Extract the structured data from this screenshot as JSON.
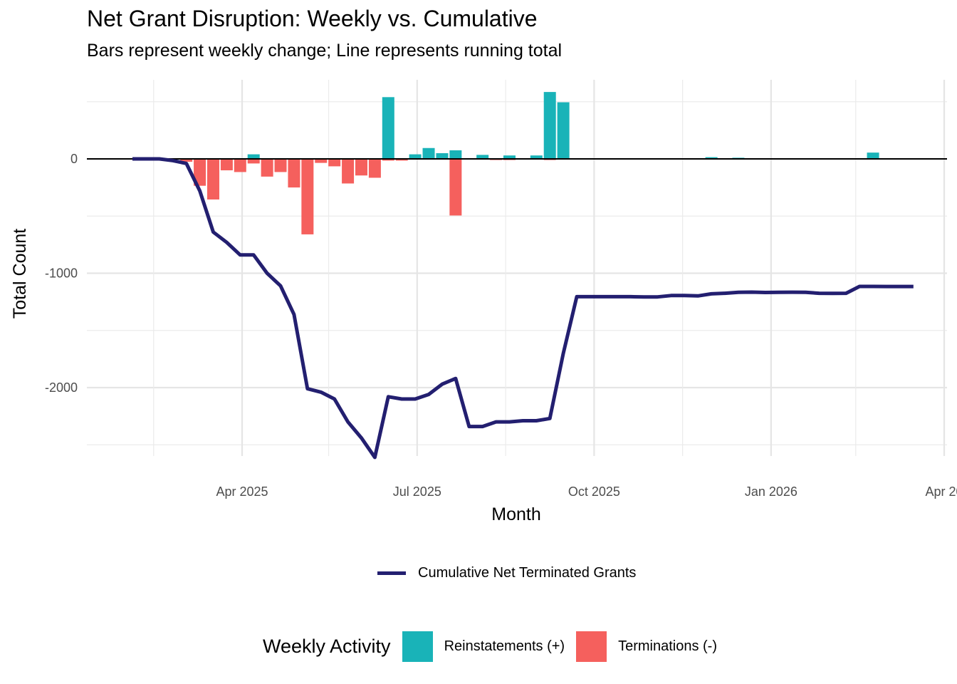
{
  "title": "Net Grant Disruption: Weekly vs. Cumulative",
  "subtitle": "Bars represent weekly change; Line represents running total",
  "chart_data": {
    "type": "bar+line",
    "title": "Net Grant Disruption: Weekly vs. Cumulative",
    "subtitle": "Bars represent weekly change; Line represents running total",
    "xlabel": "Month",
    "ylabel": "Total Count",
    "ylim": [
      -2620,
      560
    ],
    "xlim": [
      "2025-01-23",
      "2026-04-03"
    ],
    "grid": true,
    "yticks": [
      0,
      -1000,
      -2000
    ],
    "ytick_labels": [
      "0",
      "-1000",
      "-2000"
    ],
    "xticks": [
      "2025-04-01",
      "2025-07-01",
      "2025-10-01",
      "2026-01-01",
      "2026-04-01"
    ],
    "xtick_labels": [
      "Apr 2025",
      "Jul 2025",
      "Oct 2025",
      "Jan 2026",
      "Apr 20"
    ],
    "colors": {
      "reinstatements": "#19b3b8",
      "terminations": "#f5605d",
      "cumulative": "#231f70",
      "zero_line": "#000000"
    },
    "legend": {
      "line_label": "Cumulative Net Terminated Grants",
      "fill_title": "Weekly Activity",
      "fill_items": [
        {
          "label": "Reinstatements (+)",
          "color": "#19b3b8"
        },
        {
          "label": "Terminations (-)",
          "color": "#f5605d"
        }
      ],
      "placement": "bottom"
    },
    "weeks": [
      "2025-02-03",
      "2025-02-10",
      "2025-02-17",
      "2025-02-24",
      "2025-03-03",
      "2025-03-10",
      "2025-03-17",
      "2025-03-24",
      "2025-03-31",
      "2025-04-07",
      "2025-04-14",
      "2025-04-21",
      "2025-04-28",
      "2025-05-05",
      "2025-05-12",
      "2025-05-19",
      "2025-05-26",
      "2025-06-02",
      "2025-06-09",
      "2025-06-16",
      "2025-06-23",
      "2025-06-30",
      "2025-07-07",
      "2025-07-14",
      "2025-07-21",
      "2025-07-28",
      "2025-08-04",
      "2025-08-11",
      "2025-08-18",
      "2025-08-25",
      "2025-09-01",
      "2025-09-08",
      "2025-09-15",
      "2025-09-22",
      "2025-09-29",
      "2025-10-06",
      "2025-10-13",
      "2025-10-20",
      "2025-10-27",
      "2025-11-03",
      "2025-11-10",
      "2025-11-17",
      "2025-11-24",
      "2025-12-01",
      "2025-12-08",
      "2025-12-15",
      "2025-12-22",
      "2025-12-29",
      "2026-01-05",
      "2026-01-12",
      "2026-01-19",
      "2026-01-26",
      "2026-02-02",
      "2026-02-09",
      "2026-02-16",
      "2026-02-23",
      "2026-03-02",
      "2026-03-09",
      "2026-03-16"
    ],
    "series": [
      {
        "name": "Reinstatements (+)",
        "kind": "bar",
        "values": [
          0,
          0,
          0,
          0,
          0,
          0,
          0,
          0,
          0,
          40,
          0,
          0,
          0,
          0,
          0,
          0,
          0,
          0,
          0,
          540,
          0,
          40,
          95,
          50,
          75,
          0,
          35,
          5,
          30,
          0,
          30,
          585,
          495,
          0,
          0,
          0,
          0,
          0,
          0,
          5,
          0,
          0,
          0,
          15,
          0,
          10,
          0,
          0,
          0,
          0,
          0,
          0,
          0,
          0,
          0,
          55,
          0,
          0,
          0
        ]
      },
      {
        "name": "Terminations (-)",
        "kind": "bar",
        "values": [
          0,
          0,
          0,
          0,
          -25,
          -235,
          -355,
          -100,
          -115,
          -40,
          -155,
          -115,
          -250,
          -660,
          -35,
          -65,
          -215,
          -145,
          -165,
          -15,
          -15,
          0,
          0,
          0,
          -495,
          0,
          0,
          -10,
          -10,
          0,
          0,
          -10,
          0,
          0,
          0,
          0,
          0,
          0,
          0,
          0,
          0,
          0,
          0,
          0,
          0,
          0,
          0,
          0,
          0,
          0,
          0,
          0,
          0,
          0,
          0,
          0,
          0,
          0,
          0
        ]
      },
      {
        "name": "Cumulative Net Terminated Grants",
        "kind": "line",
        "values": [
          0,
          0,
          0,
          -15,
          -40,
          -280,
          -640,
          -730,
          -840,
          -840,
          -1000,
          -1110,
          -1360,
          -2010,
          -2040,
          -2100,
          -2300,
          -2440,
          -2610,
          -2080,
          -2100,
          -2100,
          -2060,
          -1970,
          -1920,
          -2340,
          -2340,
          -2300,
          -2300,
          -2290,
          -2290,
          -2270,
          -1700,
          -1205,
          -1205,
          -1205,
          -1205,
          -1205,
          -1207,
          -1207,
          -1195,
          -1195,
          -1198,
          -1180,
          -1175,
          -1167,
          -1165,
          -1168,
          -1167,
          -1166,
          -1167,
          -1175,
          -1176,
          -1175,
          -1115,
          -1115,
          -1116,
          -1116,
          -1116
        ]
      }
    ]
  }
}
